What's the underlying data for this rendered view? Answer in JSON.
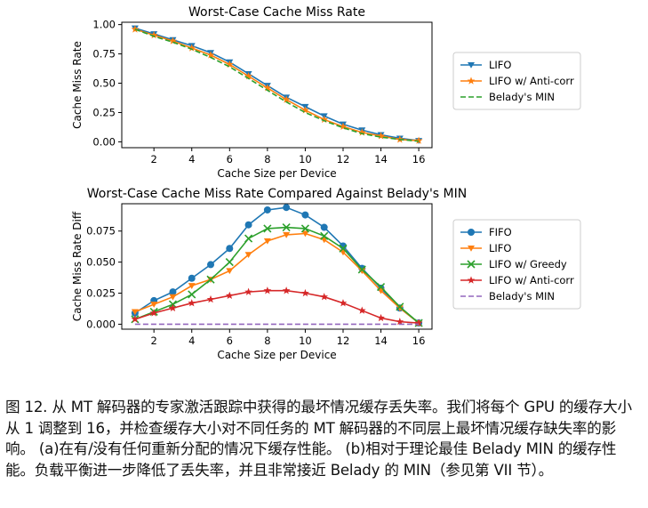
{
  "chart_data": [
    {
      "type": "line",
      "title": "Worst-Case Cache Miss Rate",
      "xlabel": "Cache Size per Device",
      "ylabel": "Cache Miss Rate",
      "xlim": [
        0.3,
        16.7
      ],
      "ylim": [
        -0.05,
        1.02
      ],
      "xticks": [
        2,
        4,
        6,
        8,
        10,
        12,
        14,
        16
      ],
      "yticks": [
        0.0,
        0.25,
        0.5,
        0.75,
        1.0
      ],
      "ytick_labels": [
        "0.00",
        "0.25",
        "0.50",
        "0.75",
        "1.00"
      ],
      "grid": false,
      "legend": "right",
      "x": [
        1,
        2,
        3,
        4,
        5,
        6,
        7,
        8,
        9,
        10,
        11,
        12,
        13,
        14,
        15,
        16
      ],
      "series": [
        {
          "name": "LIFO",
          "color": "#1f77b4",
          "marker": "triangle-down",
          "dash": false,
          "values": [
            0.97,
            0.92,
            0.87,
            0.82,
            0.76,
            0.68,
            0.58,
            0.48,
            0.38,
            0.3,
            0.22,
            0.15,
            0.1,
            0.06,
            0.03,
            0.01
          ]
        },
        {
          "name": "LIFO w/ Anti-corr",
          "color": "#ff7f0e",
          "marker": "star",
          "dash": false,
          "values": [
            0.96,
            0.91,
            0.86,
            0.8,
            0.74,
            0.66,
            0.56,
            0.46,
            0.36,
            0.27,
            0.19,
            0.13,
            0.08,
            0.05,
            0.02,
            0.01
          ]
        },
        {
          "name": "Belady's MIN",
          "color": "#2ca02c",
          "marker": "none",
          "dash": true,
          "values": [
            0.96,
            0.9,
            0.85,
            0.79,
            0.72,
            0.64,
            0.54,
            0.44,
            0.34,
            0.25,
            0.18,
            0.12,
            0.07,
            0.04,
            0.02,
            0.005
          ]
        }
      ]
    },
    {
      "type": "line",
      "title": "Worst-Case Cache Miss Rate Compared Against Belady's MIN",
      "xlabel": "Cache Size per Device",
      "ylabel": "Cache Miss Rate Diff",
      "xlim": [
        0.3,
        16.7
      ],
      "ylim": [
        -0.004,
        0.097
      ],
      "xticks": [
        2,
        4,
        6,
        8,
        10,
        12,
        14,
        16
      ],
      "yticks": [
        0.0,
        0.025,
        0.05,
        0.075
      ],
      "ytick_labels": [
        "0.000",
        "0.025",
        "0.050",
        "0.075"
      ],
      "grid": false,
      "legend": "right",
      "x": [
        1,
        2,
        3,
        4,
        5,
        6,
        7,
        8,
        9,
        10,
        11,
        12,
        13,
        14,
        15,
        16
      ],
      "series": [
        {
          "name": "FIFO",
          "color": "#1f77b4",
          "marker": "circle",
          "dash": false,
          "values": [
            0.009,
            0.019,
            0.026,
            0.037,
            0.048,
            0.061,
            0.08,
            0.092,
            0.094,
            0.088,
            0.078,
            0.063,
            0.045,
            0.029,
            0.013,
            0.001
          ]
        },
        {
          "name": "LIFO",
          "color": "#ff7f0e",
          "marker": "triangle-down",
          "dash": false,
          "values": [
            0.01,
            0.016,
            0.022,
            0.031,
            0.036,
            0.043,
            0.056,
            0.067,
            0.072,
            0.073,
            0.068,
            0.058,
            0.043,
            0.027,
            0.013,
            0.001
          ]
        },
        {
          "name": "LIFO w/ Greedy",
          "color": "#2ca02c",
          "marker": "x",
          "dash": false,
          "values": [
            0.004,
            0.01,
            0.016,
            0.024,
            0.036,
            0.05,
            0.069,
            0.077,
            0.078,
            0.077,
            0.071,
            0.061,
            0.044,
            0.03,
            0.014,
            0.001
          ]
        },
        {
          "name": "LIFO w/ Anti-corr",
          "color": "#d62728",
          "marker": "star",
          "dash": false,
          "values": [
            0.004,
            0.009,
            0.013,
            0.017,
            0.02,
            0.023,
            0.026,
            0.027,
            0.027,
            0.025,
            0.022,
            0.017,
            0.011,
            0.005,
            0.002,
            0.001
          ]
        },
        {
          "name": "Belady's MIN",
          "color": "#9467bd",
          "marker": "none",
          "dash": true,
          "values": [
            0,
            0,
            0,
            0,
            0,
            0,
            0,
            0,
            0,
            0,
            0,
            0,
            0,
            0,
            0,
            0
          ]
        }
      ]
    }
  ],
  "caption": "图 12. 从 MT 解码器的专家激活跟踪中获得的最坏情况缓存丢失率。我们将每个 GPU 的缓存大小从 1 调整到 16，并检查缓存大小对不同任务的 MT 解码器的不同层上最坏情况缓存缺失率的影响。 (a)在有/没有任何重新分配的情况下缓存性能。 (b)相对于理论最佳 Belady MIN 的缓存性能。负载平衡进一步降低了丢失率，并且非常接近 Belady 的 MIN（参见第 VII 节）。"
}
